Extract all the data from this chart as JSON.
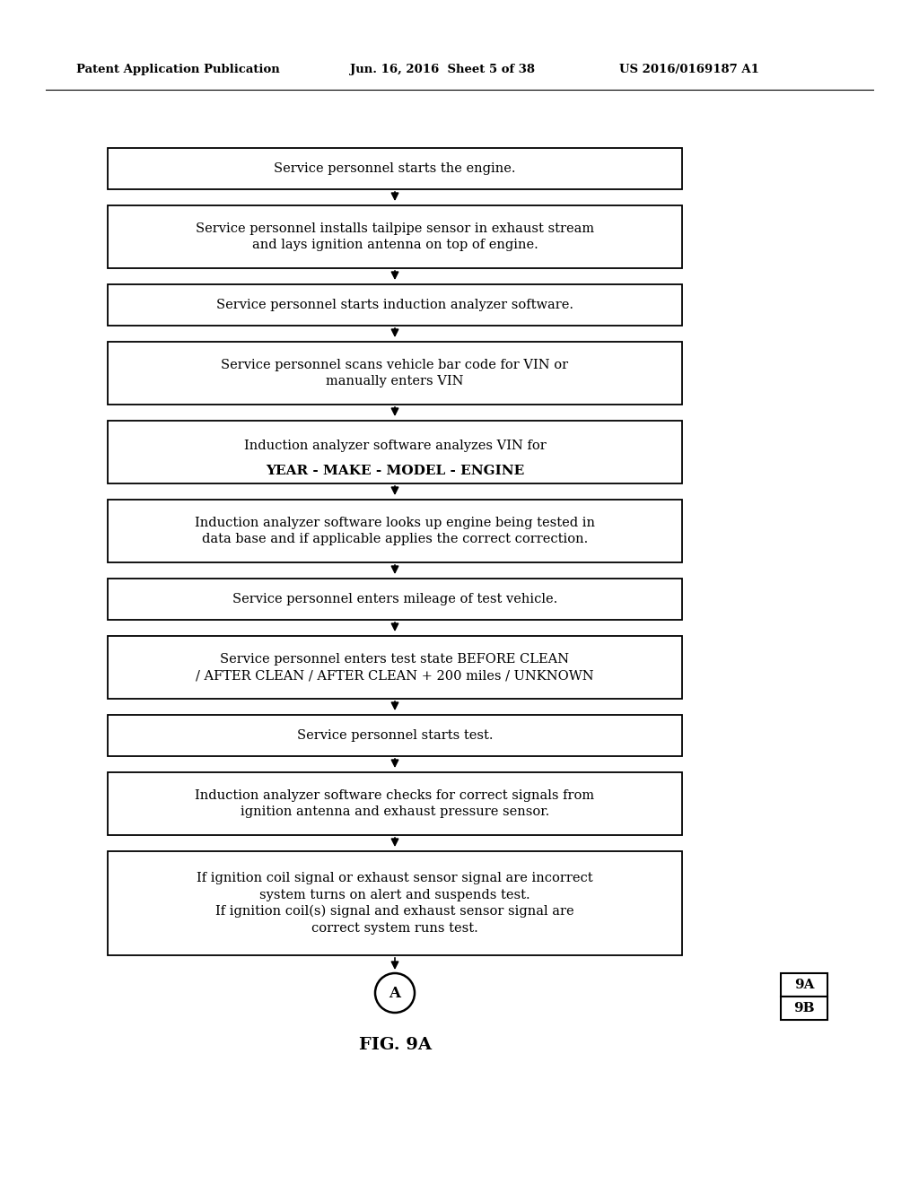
{
  "title_left": "Patent Application Publication",
  "title_mid": "Jun. 16, 2016  Sheet 5 of 38",
  "title_right": "US 2016/0169187 A1",
  "fig_label": "FIG. 9A",
  "connector_label": "A",
  "page_ref_top": "9A",
  "page_ref_bot": "9B",
  "background_color": "#ffffff",
  "box_edge_color": "#000000",
  "text_color": "#000000",
  "boxes": [
    {
      "text": "Service personnel starts the engine.",
      "lines": 1
    },
    {
      "text": "Service personnel installs tailpipe sensor in exhaust stream\nand lays ignition antenna on top of engine.",
      "lines": 2
    },
    {
      "text": "Service personnel starts induction analyzer software.",
      "lines": 1
    },
    {
      "text": "Service personnel scans vehicle bar code for VIN or\nmanually enters VIN",
      "lines": 2
    },
    {
      "text": "Induction analyzer software analyzes VIN for\nYEAR - MAKE - MODEL - ENGINE",
      "lines": 2,
      "bold_line": 1
    },
    {
      "text": "Induction analyzer software looks up engine being tested in\ndata base and if applicable applies the correct correction.",
      "lines": 2
    },
    {
      "text": "Service personnel enters mileage of test vehicle.",
      "lines": 1
    },
    {
      "text": "Service personnel enters test state BEFORE CLEAN\n/ AFTER CLEAN / AFTER CLEAN + 200 miles / UNKNOWN",
      "lines": 2
    },
    {
      "text": "Service personnel starts test.",
      "lines": 1
    },
    {
      "text": "Induction analyzer software checks for correct signals from\nignition antenna and exhaust pressure sensor.",
      "lines": 2
    },
    {
      "text": "If ignition coil signal or exhaust sensor signal are incorrect\nsystem turns on alert and suspends test.\nIf ignition coil(s) signal and exhaust sensor signal are\ncorrect system runs test.",
      "lines": 4
    }
  ]
}
